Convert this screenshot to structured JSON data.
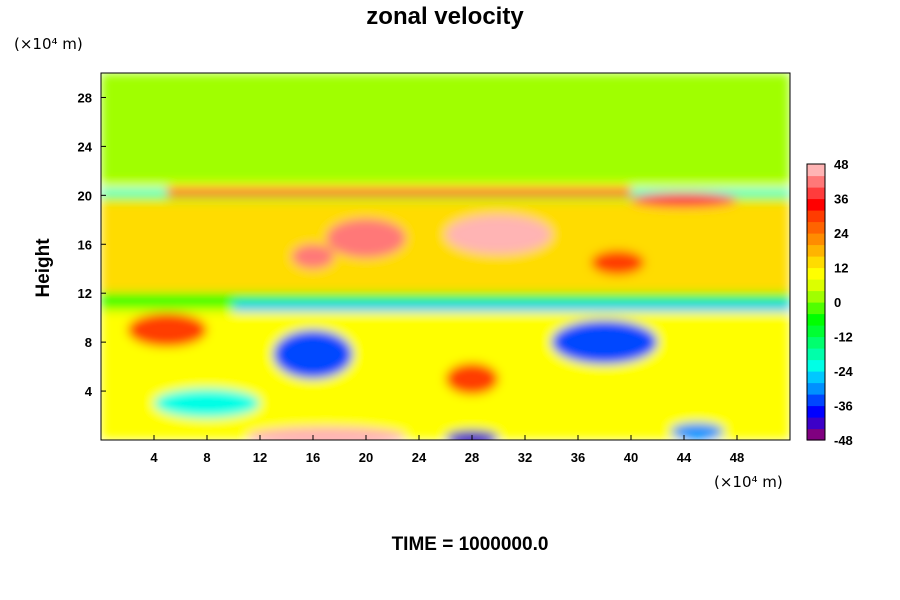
{
  "chart_data": {
    "type": "heatmap",
    "title": "zonal velocity",
    "ylabel": "Height",
    "xlabel": "",
    "x_unit": "(×10⁴ m)",
    "y_unit": "(×10⁴ m)",
    "xlim": [
      0,
      52
    ],
    "ylim": [
      0,
      30
    ],
    "x_ticks": [
      4,
      8,
      12,
      16,
      20,
      24,
      28,
      32,
      36,
      40,
      44,
      48
    ],
    "y_ticks": [
      4,
      8,
      12,
      16,
      20,
      24,
      28
    ],
    "colorbar": {
      "min": -48,
      "max": 48,
      "step": 4,
      "ticks": [
        48,
        36,
        24,
        12,
        0,
        -12,
        -24,
        -36,
        -48
      ],
      "colors": [
        "#800080",
        "#3c00c8",
        "#0000ff",
        "#0046ff",
        "#0090ff",
        "#00c8ff",
        "#00ffe6",
        "#00ffaa",
        "#00ff6e",
        "#00ff32",
        "#00ff00",
        "#50ff00",
        "#a0ff00",
        "#dcff00",
        "#ffff00",
        "#ffdc00",
        "#ffb400",
        "#ff8c00",
        "#ff6400",
        "#ff3c00",
        "#ff0000",
        "#ff3c3c",
        "#ff7878",
        "#ffb4b4"
      ]
    },
    "field_features": [
      {
        "kind": "layer",
        "x": [
          0,
          52
        ],
        "y": [
          0,
          30
        ],
        "value": 0
      },
      {
        "kind": "band",
        "x": [
          0,
          52
        ],
        "y": [
          20.2,
          21
        ],
        "value": 10
      },
      {
        "kind": "band",
        "x": [
          0,
          52
        ],
        "y": [
          20,
          20.6
        ],
        "value": -22
      },
      {
        "kind": "band",
        "x": [
          5,
          40
        ],
        "y": [
          19.9,
          20.6
        ],
        "value": 36
      },
      {
        "kind": "band",
        "x": [
          0,
          52
        ],
        "y": [
          12,
          19.5
        ],
        "value": 14
      },
      {
        "kind": "band",
        "x": [
          0,
          52
        ],
        "y": [
          11,
          12
        ],
        "value": -8
      },
      {
        "kind": "band",
        "x": [
          10,
          52
        ],
        "y": [
          10.5,
          11.3
        ],
        "value": -28
      },
      {
        "kind": "band",
        "x": [
          0,
          52
        ],
        "y": [
          0,
          10.5
        ],
        "value": 8
      },
      {
        "kind": "blob",
        "x": 20,
        "y": 16.5,
        "rx": 3,
        "ry": 1.6,
        "value": 42
      },
      {
        "kind": "blob",
        "x": 30,
        "y": 16.8,
        "rx": 4,
        "ry": 1.6,
        "value": 44
      },
      {
        "kind": "blob",
        "x": 16,
        "y": 15,
        "rx": 1.6,
        "ry": 1,
        "value": 40
      },
      {
        "kind": "blob",
        "x": 39,
        "y": 14.5,
        "rx": 2,
        "ry": 1,
        "value": 30
      },
      {
        "kind": "blob",
        "x": 44,
        "y": 19.6,
        "rx": 4,
        "ry": 0.6,
        "value": 38
      },
      {
        "kind": "blob",
        "x": 5,
        "y": 9,
        "rx": 3,
        "ry": 1.4,
        "value": 30
      },
      {
        "kind": "blob",
        "x": 16,
        "y": 7,
        "rx": 3,
        "ry": 2,
        "value": -36
      },
      {
        "kind": "blob",
        "x": 38,
        "y": 8,
        "rx": 4,
        "ry": 1.8,
        "value": -36
      },
      {
        "kind": "blob",
        "x": 8,
        "y": 3,
        "rx": 4,
        "ry": 1.2,
        "value": -24
      },
      {
        "kind": "blob",
        "x": 28,
        "y": 5,
        "rx": 2,
        "ry": 1.3,
        "value": 30
      },
      {
        "kind": "blob",
        "x": 17,
        "y": 0.3,
        "rx": 6,
        "ry": 0.8,
        "value": 46
      },
      {
        "kind": "blob",
        "x": 28,
        "y": 0.2,
        "rx": 2,
        "ry": 0.6,
        "value": -44
      },
      {
        "kind": "blob",
        "x": 45,
        "y": 0.7,
        "rx": 2,
        "ry": 0.7,
        "value": -30
      }
    ]
  },
  "footer": {
    "time_label": "TIME = 1000000.0"
  }
}
